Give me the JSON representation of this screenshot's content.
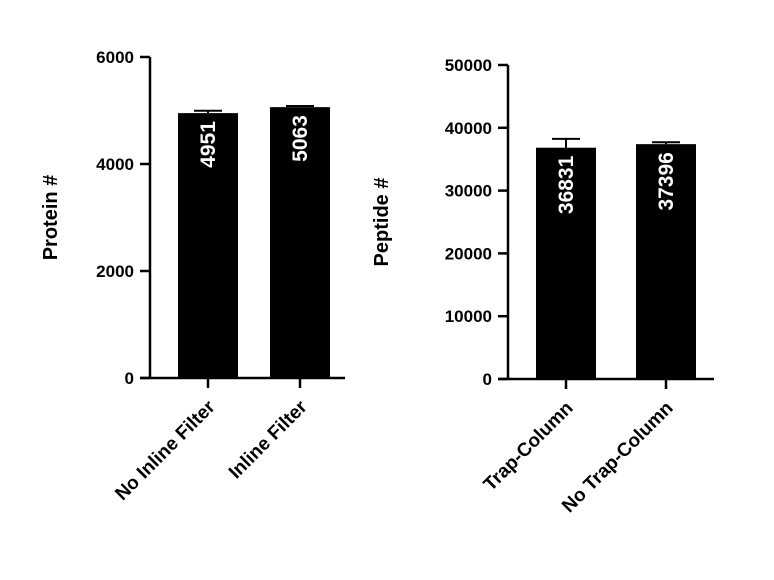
{
  "chart_data": [
    {
      "type": "bar",
      "ylabel": "Protein #",
      "ylim": [
        0,
        6000
      ],
      "yticks": [
        0,
        2000,
        4000,
        6000
      ],
      "categories": [
        "No Inline Filter",
        "Inline Filter"
      ],
      "values": [
        4951,
        5063
      ],
      "error": [
        45,
        20
      ],
      "data_labels": [
        "4951",
        "5063"
      ],
      "bar_color": "#000000",
      "grid": false
    },
    {
      "type": "bar",
      "ylabel": "Peptide #",
      "ylim": [
        0,
        50000
      ],
      "yticks": [
        0,
        10000,
        20000,
        30000,
        40000,
        50000
      ],
      "categories": [
        "Trap-Column",
        "No Trap-Column"
      ],
      "values": [
        36831,
        37396
      ],
      "error": [
        1400,
        300
      ],
      "data_labels": [
        "36831",
        "37396"
      ],
      "bar_color": "#000000",
      "grid": false
    }
  ]
}
